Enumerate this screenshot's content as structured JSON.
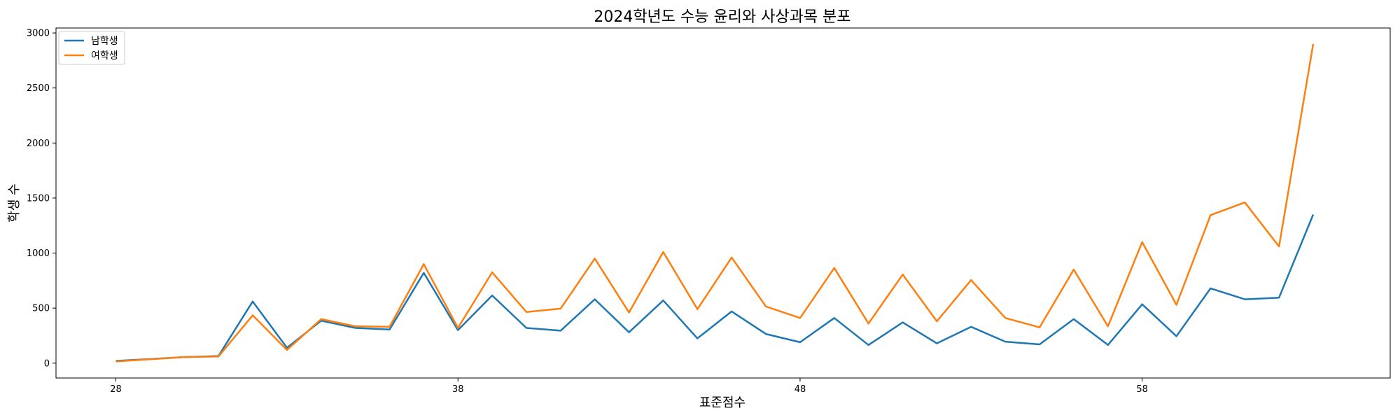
{
  "chart_data": {
    "type": "line",
    "title": "2024학년도 수능 윤리와 사상과목 분포",
    "xlabel": "표준점수",
    "ylabel": "학생 수",
    "x": [
      28,
      30,
      31,
      32,
      33,
      34,
      35,
      36,
      37,
      38,
      39,
      40,
      41,
      42,
      43,
      44,
      45,
      46,
      47,
      48,
      49,
      50,
      51,
      52,
      53,
      54,
      55,
      56,
      57,
      58,
      59,
      60,
      61,
      62,
      63
    ],
    "xlim": [
      26.25,
      65.25
    ],
    "ylim": [
      -135,
      3045
    ],
    "xticks": [
      28,
      38,
      48,
      58
    ],
    "yticks": [
      0,
      500,
      1000,
      1500,
      2000,
      2500,
      3000
    ],
    "grid": false,
    "legend_position": "top-left",
    "series": [
      {
        "name": "남학생",
        "color": "#1f77b4",
        "values": [
          20,
          55,
          65,
          560,
          140,
          385,
          320,
          305,
          820,
          300,
          615,
          320,
          295,
          580,
          280,
          570,
          225,
          470,
          265,
          190,
          410,
          165,
          370,
          180,
          330,
          195,
          170,
          400,
          165,
          535,
          245,
          680,
          580,
          595,
          1350
        ]
      },
      {
        "name": "여학생",
        "color": "#ff7f0e",
        "values": [
          15,
          55,
          60,
          435,
          120,
          400,
          335,
          330,
          900,
          320,
          825,
          465,
          495,
          950,
          460,
          1010,
          490,
          960,
          515,
          410,
          865,
          360,
          805,
          380,
          755,
          410,
          325,
          850,
          335,
          1100,
          530,
          1345,
          1460,
          1060,
          2900
        ]
      }
    ]
  }
}
